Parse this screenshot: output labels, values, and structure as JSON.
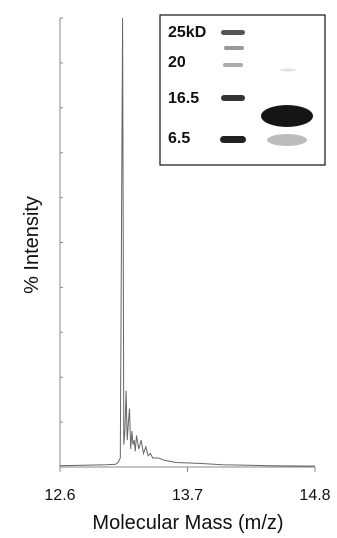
{
  "chart_data": {
    "type": "line",
    "title": "",
    "xlabel": "Molecular Mass (m/z)",
    "ylabel": "% Intensity",
    "xlim": [
      12.6,
      14.8
    ],
    "ylim": [
      0,
      100
    ],
    "x_ticks": [
      "12.6",
      "13.7",
      "14.8"
    ],
    "grid": false,
    "series": [
      {
        "x": [
          12.6,
          12.8,
          13.0,
          13.08,
          13.1,
          13.12,
          13.14,
          13.15,
          13.16,
          13.17,
          13.18,
          13.19,
          13.2,
          13.21,
          13.22,
          13.23,
          13.24,
          13.25,
          13.26,
          13.28,
          13.3,
          13.32,
          13.34,
          13.36,
          13.38,
          13.4,
          13.45,
          13.5,
          13.6,
          13.8,
          14.0,
          14.4,
          14.8
        ],
        "y": [
          0.3,
          0.4,
          0.5,
          0.6,
          1.0,
          2.0,
          100.0,
          5.0,
          8.0,
          17.0,
          6.0,
          10.0,
          13.0,
          4.0,
          8.0,
          5.0,
          6.0,
          3.5,
          7.0,
          4.0,
          6.0,
          3.0,
          4.5,
          2.5,
          3.0,
          2.0,
          2.0,
          1.5,
          1.0,
          0.8,
          0.5,
          0.3,
          0.2
        ]
      }
    ],
    "color": "#666666"
  },
  "inset": {
    "marker_labels": [
      "25kD",
      "20",
      "16.5",
      "6.5"
    ]
  }
}
